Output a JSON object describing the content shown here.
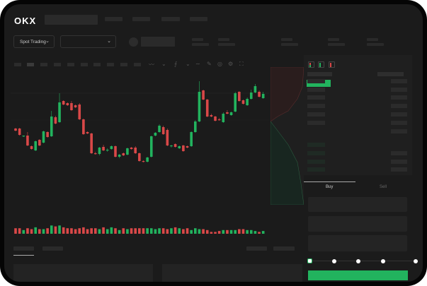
{
  "header": {
    "logo": "OKX"
  },
  "toolbar": {
    "market_dropdown": "Spot Trading",
    "pair_dropdown": ""
  },
  "trade_panel": {
    "tabs": [
      "Buy",
      "Sell"
    ],
    "active_tab": "Buy",
    "slider_percent": 0
  },
  "colors": {
    "up": "#22b35e",
    "down": "#d94848",
    "accent": "#22b35e"
  },
  "icons": [
    "order-book-both-icon",
    "order-book-bids-icon",
    "order-book-asks-icon",
    "indicator-icon",
    "draw-icon",
    "camera-icon",
    "settings-icon",
    "fullscreen-icon"
  ],
  "chart_data": {
    "type": "candlestick",
    "ohlc": [
      [
        118,
        119,
        114,
        115
      ],
      [
        118,
        119,
        108,
        109
      ],
      [
        107,
        108,
        106,
        108
      ],
      [
        108,
        113,
        93,
        94
      ],
      [
        93,
        94,
        88,
        89
      ],
      [
        87,
        101,
        86,
        100
      ],
      [
        102,
        103,
        93,
        94
      ],
      [
        98,
        115,
        97,
        114
      ],
      [
        113,
        114,
        105,
        106
      ],
      [
        107,
        143,
        106,
        135
      ],
      [
        134,
        136,
        124,
        125
      ],
      [
        127,
        168,
        126,
        155
      ],
      [
        157,
        158,
        151,
        152
      ],
      [
        154,
        155,
        150,
        151
      ],
      [
        154,
        157,
        143,
        144
      ],
      [
        151,
        152,
        147,
        148
      ],
      [
        152,
        154,
        130,
        131
      ],
      [
        131,
        132,
        109,
        110
      ],
      [
        113,
        114,
        110,
        111
      ],
      [
        111,
        112,
        82,
        83
      ],
      [
        83,
        85,
        81,
        82
      ],
      [
        82,
        92,
        80,
        91
      ],
      [
        92,
        95,
        86,
        87
      ],
      [
        87,
        90,
        85,
        88
      ],
      [
        89,
        94,
        88,
        93
      ],
      [
        93,
        94,
        77,
        78
      ],
      [
        78,
        82,
        76,
        81
      ],
      [
        83,
        84,
        79,
        80
      ],
      [
        81,
        91,
        80,
        90
      ],
      [
        91,
        92,
        88,
        89
      ],
      [
        91,
        93,
        82,
        83
      ],
      [
        83,
        84,
        71,
        72
      ],
      [
        72,
        73,
        70,
        71
      ],
      [
        71,
        78,
        70,
        77
      ],
      [
        78,
        108,
        77,
        107
      ],
      [
        108,
        113,
        107,
        112
      ],
      [
        113,
        124,
        112,
        122
      ],
      [
        120,
        122,
        109,
        110
      ],
      [
        116,
        118,
        93,
        94
      ],
      [
        93,
        95,
        91,
        94
      ],
      [
        96,
        97,
        91,
        92
      ],
      [
        90,
        94,
        89,
        93
      ],
      [
        94,
        95,
        85,
        86
      ],
      [
        93,
        94,
        90,
        91
      ],
      [
        93,
        114,
        92,
        113
      ],
      [
        113,
        130,
        112,
        128
      ],
      [
        128,
        185,
        127,
        170
      ],
      [
        172,
        173,
        158,
        159
      ],
      [
        159,
        160,
        134,
        135
      ],
      [
        137,
        139,
        134,
        135
      ],
      [
        135,
        136,
        128,
        129
      ],
      [
        131,
        133,
        129,
        130
      ],
      [
        127,
        141,
        126,
        139
      ],
      [
        141,
        144,
        138,
        139
      ],
      [
        137,
        142,
        136,
        141
      ],
      [
        142,
        170,
        141,
        168
      ],
      [
        170,
        171,
        156,
        157
      ],
      [
        158,
        159,
        152,
        153
      ],
      [
        151,
        162,
        150,
        160
      ],
      [
        160,
        173,
        159,
        169
      ],
      [
        169,
        181,
        168,
        178
      ],
      [
        170,
        172,
        162,
        163
      ],
      [
        161,
        170,
        160,
        167
      ]
    ],
    "volume": [
      6,
      6,
      4,
      6,
      5,
      7,
      5,
      5,
      6,
      9,
      8,
      9,
      7,
      6,
      6,
      5,
      6,
      7,
      5,
      6,
      6,
      5,
      7,
      5,
      7,
      6,
      4,
      6,
      5,
      6,
      6,
      6,
      6,
      6,
      6,
      5,
      6,
      6,
      5,
      6,
      7,
      6,
      5,
      6,
      4,
      6,
      5,
      5,
      4,
      2,
      2,
      3,
      4,
      4,
      4,
      4,
      5,
      5,
      4,
      4,
      3,
      2,
      3
    ],
    "xlabel": "",
    "ylabel": ""
  }
}
